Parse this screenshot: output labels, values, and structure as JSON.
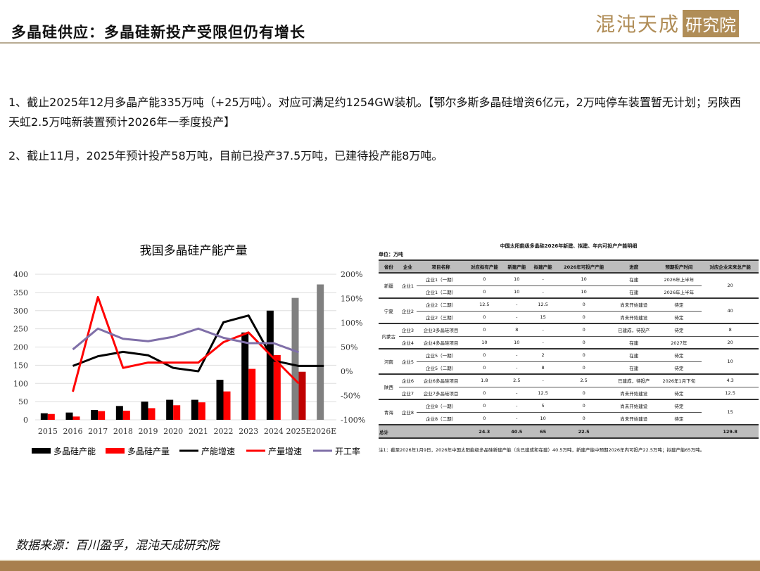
{
  "header": {
    "title": "多晶硅供应：多晶硅新投产受限但仍有增长",
    "logo_text": "混沌天成",
    "logo_box": "研究院"
  },
  "paragraphs": [
    "1、截止2025年12月多晶产能335万吨（+25万吨）。对应可满足约1254GW装机。【鄂尔多斯多晶硅增资6亿元，2万吨停车装置暂无计划；另陕西天虹2.5万吨新装置预计2026年一季度投产】",
    "2、截止11月，2025年预计投产58万吨，目前已投产37.5万吨，已建待投产能8万吨。"
  ],
  "chart_data": {
    "type": "bar",
    "title": "我国多晶硅产能产量",
    "categories": [
      "2015",
      "2016",
      "2017",
      "2018",
      "2019",
      "2020",
      "2021",
      "2022",
      "2023",
      "2024",
      "2025E",
      "2026E"
    ],
    "ylim": [
      0,
      400
    ],
    "yticks": [
      0,
      50,
      100,
      150,
      200,
      250,
      300,
      350,
      400
    ],
    "y2lim": [
      -100,
      200
    ],
    "y2ticks": [
      "-100%",
      "-50%",
      "0%",
      "50%",
      "100%",
      "150%",
      "200%"
    ],
    "series": [
      {
        "name": "多晶硅产能",
        "type": "bar",
        "axis": "left",
        "color": "#000000",
        "estimate_color": "#808080",
        "values": [
          18,
          20,
          27,
          38,
          50,
          55,
          55,
          110,
          240,
          300,
          335,
          372
        ]
      },
      {
        "name": "多晶硅产量",
        "type": "bar",
        "axis": "left",
        "color": "#ff0000",
        "estimate_color": "#c00000",
        "values": [
          16,
          9,
          24,
          25,
          32,
          40,
          48,
          78,
          140,
          178,
          132,
          null
        ]
      },
      {
        "name": "产能增速",
        "type": "line",
        "axis": "right",
        "color": "#000000",
        "values": [
          null,
          11,
          31,
          40,
          33,
          7,
          0,
          101,
          115,
          22,
          11,
          11
        ]
      },
      {
        "name": "产量增速",
        "type": "line",
        "axis": "right",
        "color": "#ff0000",
        "values": [
          null,
          -42,
          153,
          7,
          18,
          18,
          18,
          60,
          80,
          27,
          -25,
          null
        ]
      },
      {
        "name": "开工率",
        "type": "line",
        "axis": "right",
        "color": "#7f6fa8",
        "values": [
          null,
          45,
          88,
          67,
          62,
          71,
          88,
          69,
          58,
          58,
          39,
          null
        ]
      }
    ],
    "legend": "bottom",
    "grid": true
  },
  "table": {
    "title": "中国太阳能级多晶硅2026年新建、拟建、年内可投产产能明细",
    "unit": "单位：万吨",
    "headers": [
      "省份",
      "企业",
      "项目名称",
      "对应拟有产能",
      "新建产能",
      "拟建产能",
      "2026年可投产产能",
      "进度",
      "预期投产时间",
      "对应企业未来总产能"
    ],
    "groups": [
      {
        "province": "新疆",
        "rows": [
          {
            "company": "企业1",
            "company_span": 2,
            "project": "企业1（一期）",
            "c1": "0",
            "c2": "10",
            "c3": "-",
            "c4": "10",
            "progress": "在建",
            "time": "2026年上半年",
            "total": "20",
            "total_span": 2
          },
          {
            "project": "企业1（二期）",
            "c1": "0",
            "c2": "10",
            "c3": "-",
            "c4": "10",
            "progress": "在建",
            "time": "2026年上半年"
          }
        ]
      },
      {
        "province": "宁夏",
        "rows": [
          {
            "company": "企业2",
            "company_span": 2,
            "project": "企业2（二期）",
            "c1": "12.5",
            "c2": "-",
            "c3": "12.5",
            "c4": "0",
            "progress": "尚未开始建设",
            "time": "待定",
            "total": "40",
            "total_span": 2
          },
          {
            "project": "企业2（三期）",
            "c1": "0",
            "c2": "-",
            "c3": "15",
            "c4": "0",
            "progress": "尚未开始建设",
            "time": "待定"
          }
        ]
      },
      {
        "province": "内蒙古",
        "rows": [
          {
            "company": "企业3",
            "company_span": 1,
            "project": "企业3多晶硅项目",
            "c1": "0",
            "c2": "8",
            "c3": "-",
            "c4": "0",
            "progress": "已建成，待投产",
            "time": "待定",
            "total": "8",
            "total_span": 1
          },
          {
            "company": "企业4",
            "company_span": 1,
            "project": "企业4多晶硅项目",
            "c1": "10",
            "c2": "10",
            "c3": "-",
            "c4": "0",
            "progress": "在建",
            "time": "2027年",
            "total": "20",
            "total_span": 1
          }
        ]
      },
      {
        "province": "河南",
        "rows": [
          {
            "company": "企业5",
            "company_span": 2,
            "project": "企业5（一期）",
            "c1": "0",
            "c2": "-",
            "c3": "2",
            "c4": "0",
            "progress": "在建",
            "time": "待定",
            "total": "10",
            "total_span": 2
          },
          {
            "project": "企业5（二期）",
            "c1": "0",
            "c2": "-",
            "c3": "8",
            "c4": "0",
            "progress": "在建",
            "time": "待定"
          }
        ]
      },
      {
        "province": "陕西",
        "rows": [
          {
            "company": "企业6",
            "company_span": 1,
            "project": "企业6多晶硅项目",
            "c1": "1.8",
            "c2": "2.5",
            "c3": "-",
            "c4": "2.5",
            "progress": "已建成，待投产",
            "time": "2026年1月下旬",
            "total": "4.3",
            "total_span": 1
          },
          {
            "company": "企业7",
            "company_span": 1,
            "project": "企业7多晶硅项目",
            "c1": "0",
            "c2": "-",
            "c3": "12.5",
            "c4": "0",
            "progress": "尚未开始建设",
            "time": "待定",
            "total": "12.5",
            "total_span": 1
          }
        ]
      },
      {
        "province": "青海",
        "rows": [
          {
            "company": "企业8",
            "company_span": 2,
            "project": "企业8（一期）",
            "c1": "0",
            "c2": "-",
            "c3": "5",
            "c4": "0",
            "progress": "尚未开始建设",
            "time": "待定",
            "total": "15",
            "total_span": 2
          },
          {
            "project": "企业8（二期）",
            "c1": "0",
            "c2": "-",
            "c3": "10",
            "c4": "0",
            "progress": "尚未开始建设",
            "time": "待定"
          }
        ]
      }
    ],
    "total": {
      "label": "总计",
      "c1": "24.3",
      "c2": "40.5",
      "c3": "65",
      "c4": "22.5",
      "total": "129.8"
    },
    "note": "注1：截至2026年1月9日，2026年中国太阳能级多晶硅新建产能（含已建成和在建）40.5万吨，新建产能中预期2026年内可投产22.5万吨；拟建产能65万吨。"
  },
  "source": "数据来源：百川盈孚，混沌天成研究院"
}
